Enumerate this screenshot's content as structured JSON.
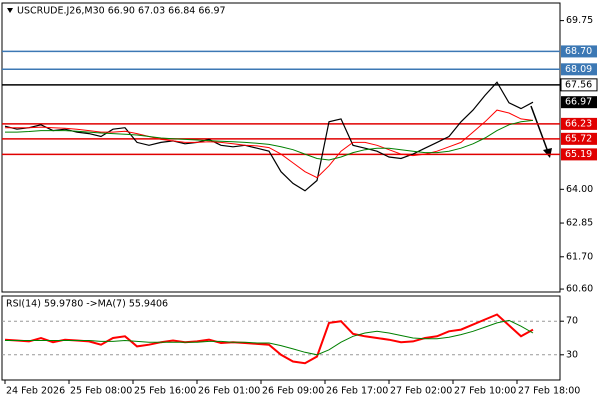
{
  "chart_data": [
    {
      "type": "line",
      "title": "USCRUDE.J26,M30 66.90 67.03 66.84 66.97",
      "x": [
        0,
        3,
        6,
        9,
        12,
        15,
        18,
        21,
        24,
        27,
        30,
        33,
        36,
        39,
        42,
        45,
        48,
        51,
        54,
        57,
        60,
        63,
        66,
        69,
        72,
        75,
        78,
        81,
        84,
        87,
        90,
        93,
        96,
        99,
        102,
        105,
        108,
        111,
        114,
        117,
        120,
        123,
        126,
        129,
        132
      ],
      "xlim": [
        -0.75,
        138.75
      ],
      "xticks": [
        {
          "value": 0,
          "label": "24 Feb 2026"
        },
        {
          "value": 16,
          "label": "25 Feb 08:00"
        },
        {
          "value": 32,
          "label": "25 Feb 16:00"
        },
        {
          "value": 48,
          "label": "26 Feb 01:00"
        },
        {
          "value": 64,
          "label": "26 Feb 09:00"
        },
        {
          "value": 80,
          "label": "26 Feb 17:00"
        },
        {
          "value": 96,
          "label": "27 Feb 02:00"
        },
        {
          "value": 112,
          "label": "27 Feb 10:00"
        },
        {
          "value": 128,
          "label": "27 Feb 18:00"
        }
      ],
      "ylim": [
        60.5,
        70.35
      ],
      "yticks": [
        69.75,
        {
          "value": 64,
          "label": "64.00"
        },
        62.85,
        {
          "value": 61.7,
          "label": "61.70"
        },
        {
          "value": 60.6,
          "label": "60.60"
        }
      ],
      "series": [
        {
          "color": "#000000",
          "values": [
            66.15,
            66.05,
            66.1,
            66.2,
            66.0,
            66.05,
            65.95,
            65.9,
            65.8,
            66.05,
            66.1,
            65.6,
            65.5,
            65.6,
            65.65,
            65.55,
            65.6,
            65.7,
            65.5,
            65.45,
            65.5,
            65.4,
            65.3,
            64.6,
            64.2,
            63.95,
            64.3,
            66.3,
            66.4,
            65.5,
            65.4,
            65.3,
            65.1,
            65.05,
            65.2,
            65.4,
            65.6,
            65.8,
            66.3,
            66.7,
            67.2,
            67.65,
            66.95,
            66.75,
            66.97
          ]
        },
        {
          "color": "#ff0000",
          "values": [
            66.1,
            66.1,
            66.1,
            66.12,
            66.1,
            66.08,
            66.05,
            66.0,
            65.95,
            65.95,
            65.98,
            65.9,
            65.8,
            65.7,
            65.65,
            65.6,
            65.6,
            65.62,
            65.6,
            65.55,
            65.5,
            65.48,
            65.42,
            65.2,
            64.9,
            64.6,
            64.4,
            64.8,
            65.3,
            65.6,
            65.6,
            65.5,
            65.35,
            65.2,
            65.15,
            65.2,
            65.3,
            65.45,
            65.6,
            65.95,
            66.3,
            66.7,
            66.6,
            66.4,
            66.35
          ]
        },
        {
          "color": "#008000",
          "values": [
            65.95,
            65.95,
            65.97,
            66.0,
            66.0,
            66.0,
            65.98,
            65.95,
            65.92,
            65.9,
            65.88,
            65.85,
            65.8,
            65.75,
            65.72,
            65.7,
            65.68,
            65.66,
            65.64,
            65.62,
            65.6,
            65.57,
            65.53,
            65.45,
            65.35,
            65.2,
            65.05,
            65.0,
            65.1,
            65.25,
            65.35,
            65.4,
            65.4,
            65.35,
            65.3,
            65.25,
            65.25,
            65.3,
            65.4,
            65.55,
            65.75,
            66.0,
            66.2,
            66.3,
            66.35
          ]
        }
      ],
      "levels": [
        {
          "value": 68.7,
          "label": "68.70",
          "color": "#3c78b4"
        },
        {
          "value": 68.09,
          "label": "68.09",
          "color": "#3c78b4"
        },
        {
          "value": 67.56,
          "label": "67.56",
          "color": "#000000",
          "box": "#ffffff"
        },
        {
          "value": 66.23,
          "label": "66.23",
          "color": "#e00000"
        },
        {
          "value": 65.72,
          "label": "65.72",
          "color": "#e00000"
        },
        {
          "value": 65.19,
          "label": "65.19",
          "color": "#e00000"
        }
      ],
      "last": {
        "value": 66.97,
        "label": "66.97",
        "color": "#000000"
      }
    },
    {
      "type": "line",
      "title": "RSI(14) 59.9780 ->MA(7) 55.9406",
      "ylim": [
        0,
        100
      ],
      "yticks": [
        70,
        30
      ],
      "series": [
        {
          "color": "#ff0000",
          "values": [
            48,
            47,
            46,
            50,
            45,
            48,
            47,
            46,
            42,
            50,
            52,
            40,
            42,
            45,
            47,
            45,
            46,
            48,
            44,
            45,
            44,
            43,
            42,
            30,
            22,
            20,
            28,
            68,
            70,
            55,
            52,
            50,
            48,
            45,
            46,
            50,
            52,
            58,
            60,
            66,
            72,
            78,
            65,
            52,
            60
          ]
        },
        {
          "color": "#008000",
          "values": [
            47,
            47,
            47,
            47,
            47,
            47,
            47,
            47,
            46,
            46,
            47,
            46,
            45,
            45,
            45,
            45,
            45,
            46,
            46,
            45,
            45,
            44,
            44,
            41,
            37,
            33,
            30,
            36,
            45,
            52,
            56,
            58,
            56,
            53,
            50,
            49,
            49,
            51,
            54,
            58,
            63,
            68,
            71,
            64,
            56
          ]
        }
      ]
    }
  ]
}
